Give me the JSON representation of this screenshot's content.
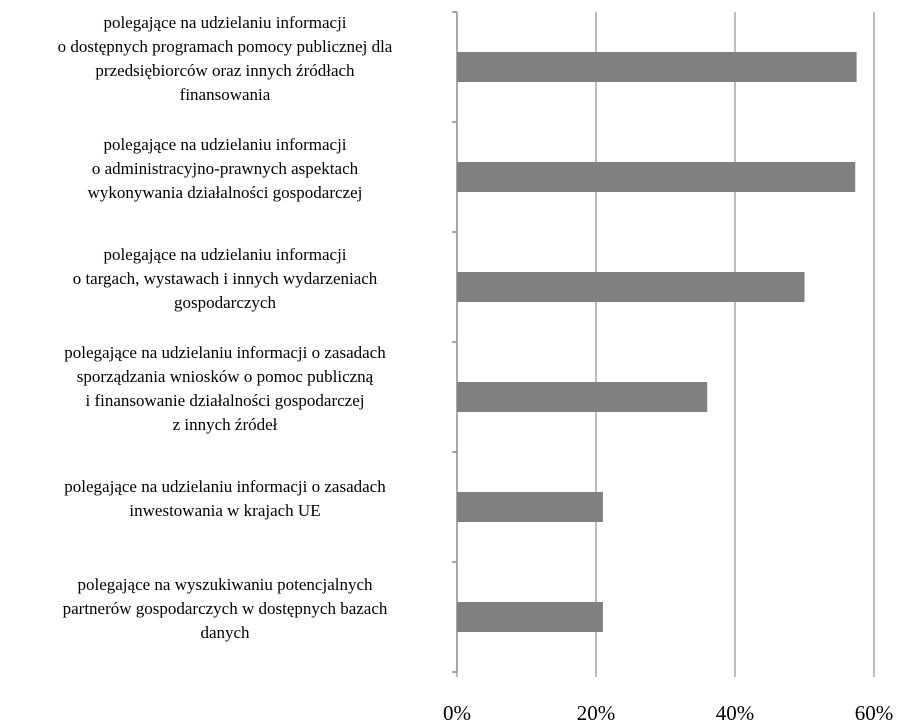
{
  "chart_data": {
    "type": "hbar",
    "categories": [
      "polegające na udzielaniu informacji\no dostępnych programach pomocy publicznej dla\nprzedsiębiorców oraz innych źródłach\nfinansowania",
      "polegające na udzielaniu informacji\no administracyjno-prawnych aspektach\nwykonywania działalności gospodarczej",
      "polegające na udzielaniu informacji\no targach, wystawach i innych wydarzeniach\ngospodarczych",
      "polegające na udzielaniu informacji o zasadach\nsporządzania wniosków o pomoc publiczną\ni finansowanie działalności gospodarczej\nz innych źródeł",
      "polegające na udzielaniu informacji o zasadach\ninwestowania w krajach UE",
      "polegające na wyszukiwaniu potencjalnych\npartnerów gospodarczych w dostępnych bazach\ndanych"
    ],
    "values": [
      57.5,
      57.3,
      50,
      36,
      21,
      21
    ],
    "color": "#808080",
    "xlim": [
      0,
      60
    ],
    "xticks": [
      {
        "value": 0,
        "label": "0%"
      },
      {
        "value": 20,
        "label": "20%"
      },
      {
        "value": 40,
        "label": "40%"
      },
      {
        "value": 60,
        "label": "60%"
      }
    ],
    "grid": true
  }
}
